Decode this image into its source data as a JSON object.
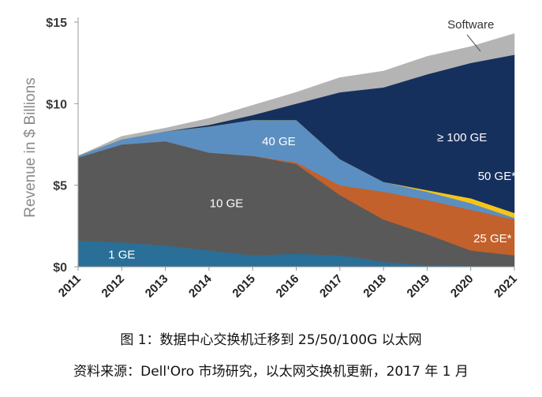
{
  "chart_data": {
    "type": "area",
    "stacked": true,
    "ylabel": "Revenue in $ Billions",
    "xlabel": "",
    "x": [
      "2011",
      "2012",
      "2013",
      "2014",
      "2015",
      "2016",
      "2017",
      "2018",
      "2019",
      "2020",
      "2021"
    ],
    "ylim": [
      0,
      15
    ],
    "yticks": [
      0,
      5,
      10,
      15
    ],
    "ytick_labels": [
      "$0",
      "$5",
      "$10",
      "$15"
    ],
    "series": [
      {
        "name": "1 GE",
        "color": "#2a6f97",
        "values": [
          1.6,
          1.5,
          1.3,
          1.0,
          0.7,
          0.8,
          0.7,
          0.3,
          0.1,
          0.05,
          0.0
        ]
      },
      {
        "name": "10 GE",
        "color": "#595959",
        "values": [
          5.1,
          6.0,
          6.4,
          6.0,
          6.1,
          5.5,
          3.7,
          2.6,
          1.9,
          0.95,
          0.7
        ]
      },
      {
        "name": "25 GE*",
        "color": "#c2612b",
        "values": [
          0.0,
          0.0,
          0.0,
          0.0,
          0.0,
          0.1,
          0.6,
          1.7,
          2.1,
          2.5,
          2.2
        ]
      },
      {
        "name": "40 GE",
        "color": "#5b8fc2",
        "values": [
          0.1,
          0.3,
          0.6,
          1.6,
          2.2,
          2.6,
          1.6,
          0.6,
          0.5,
          0.4,
          0.1
        ]
      },
      {
        "name": "50 GE*",
        "color": "#f5c518",
        "values": [
          0.0,
          0.0,
          0.0,
          0.0,
          0.0,
          0.0,
          0.0,
          0.0,
          0.1,
          0.3,
          0.3
        ]
      },
      {
        "name": "≥ 100 GE",
        "color": "#16305e",
        "values": [
          0.0,
          0.0,
          0.0,
          0.1,
          0.3,
          1.0,
          4.1,
          5.8,
          7.1,
          8.3,
          9.7
        ]
      },
      {
        "name": "Software",
        "color": "#b4b4b4",
        "values": [
          0.0,
          0.2,
          0.2,
          0.4,
          0.6,
          0.7,
          0.9,
          1.0,
          1.1,
          1.0,
          1.3
        ]
      }
    ],
    "area_labels": [
      "1 GE",
      "10 GE",
      "25 GE*",
      "40 GE",
      "50 GE*",
      "≥ 100 GE",
      "Software"
    ]
  },
  "captions": {
    "figure": "图 1：数据中心交换机迁移到 25/50/100G 以太网",
    "source": "资料来源：Dell'Oro 市场研究，以太网交换机更新，2017 年 1 月"
  }
}
